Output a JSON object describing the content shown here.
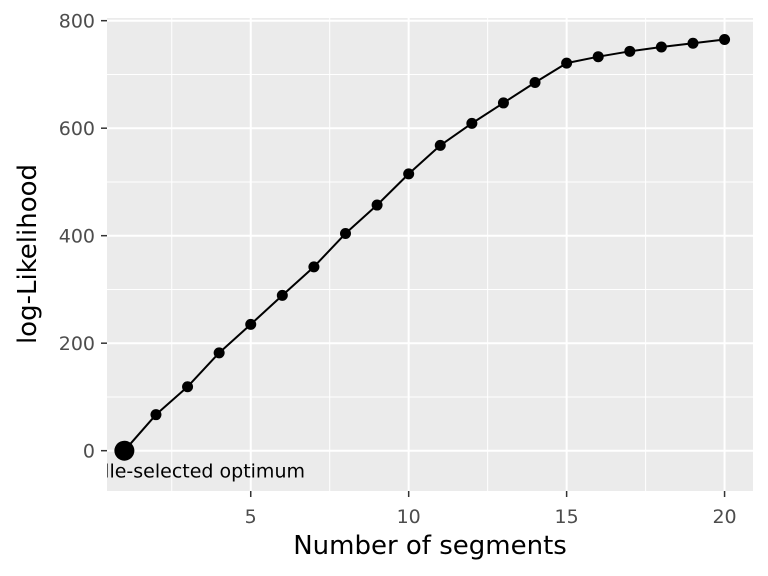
{
  "chart_data": {
    "type": "line",
    "xlabel": "Number of segments",
    "ylabel": "log-Likelihood",
    "x_ticks": [
      5,
      10,
      15,
      20
    ],
    "y_ticks": [
      0,
      200,
      400,
      600,
      800
    ],
    "xlim": [
      0.45,
      20.9
    ],
    "ylim": [
      -75,
      805
    ],
    "grid": true,
    "background": "#ebebeb",
    "line_color": "#000000",
    "x": [
      1,
      2,
      3,
      4,
      5,
      6,
      7,
      8,
      9,
      10,
      11,
      12,
      13,
      14,
      15,
      16,
      17,
      18,
      19,
      20
    ],
    "series": [
      {
        "values": [
          0,
          67,
          119,
          182,
          235,
          289,
          342,
          404,
          457,
          515,
          568,
          609,
          647,
          685,
          721,
          733,
          743,
          751,
          758,
          765
        ]
      }
    ],
    "highlight": {
      "x": 1,
      "y": 0
    },
    "annotation": "Lavielle-selected optimum"
  }
}
